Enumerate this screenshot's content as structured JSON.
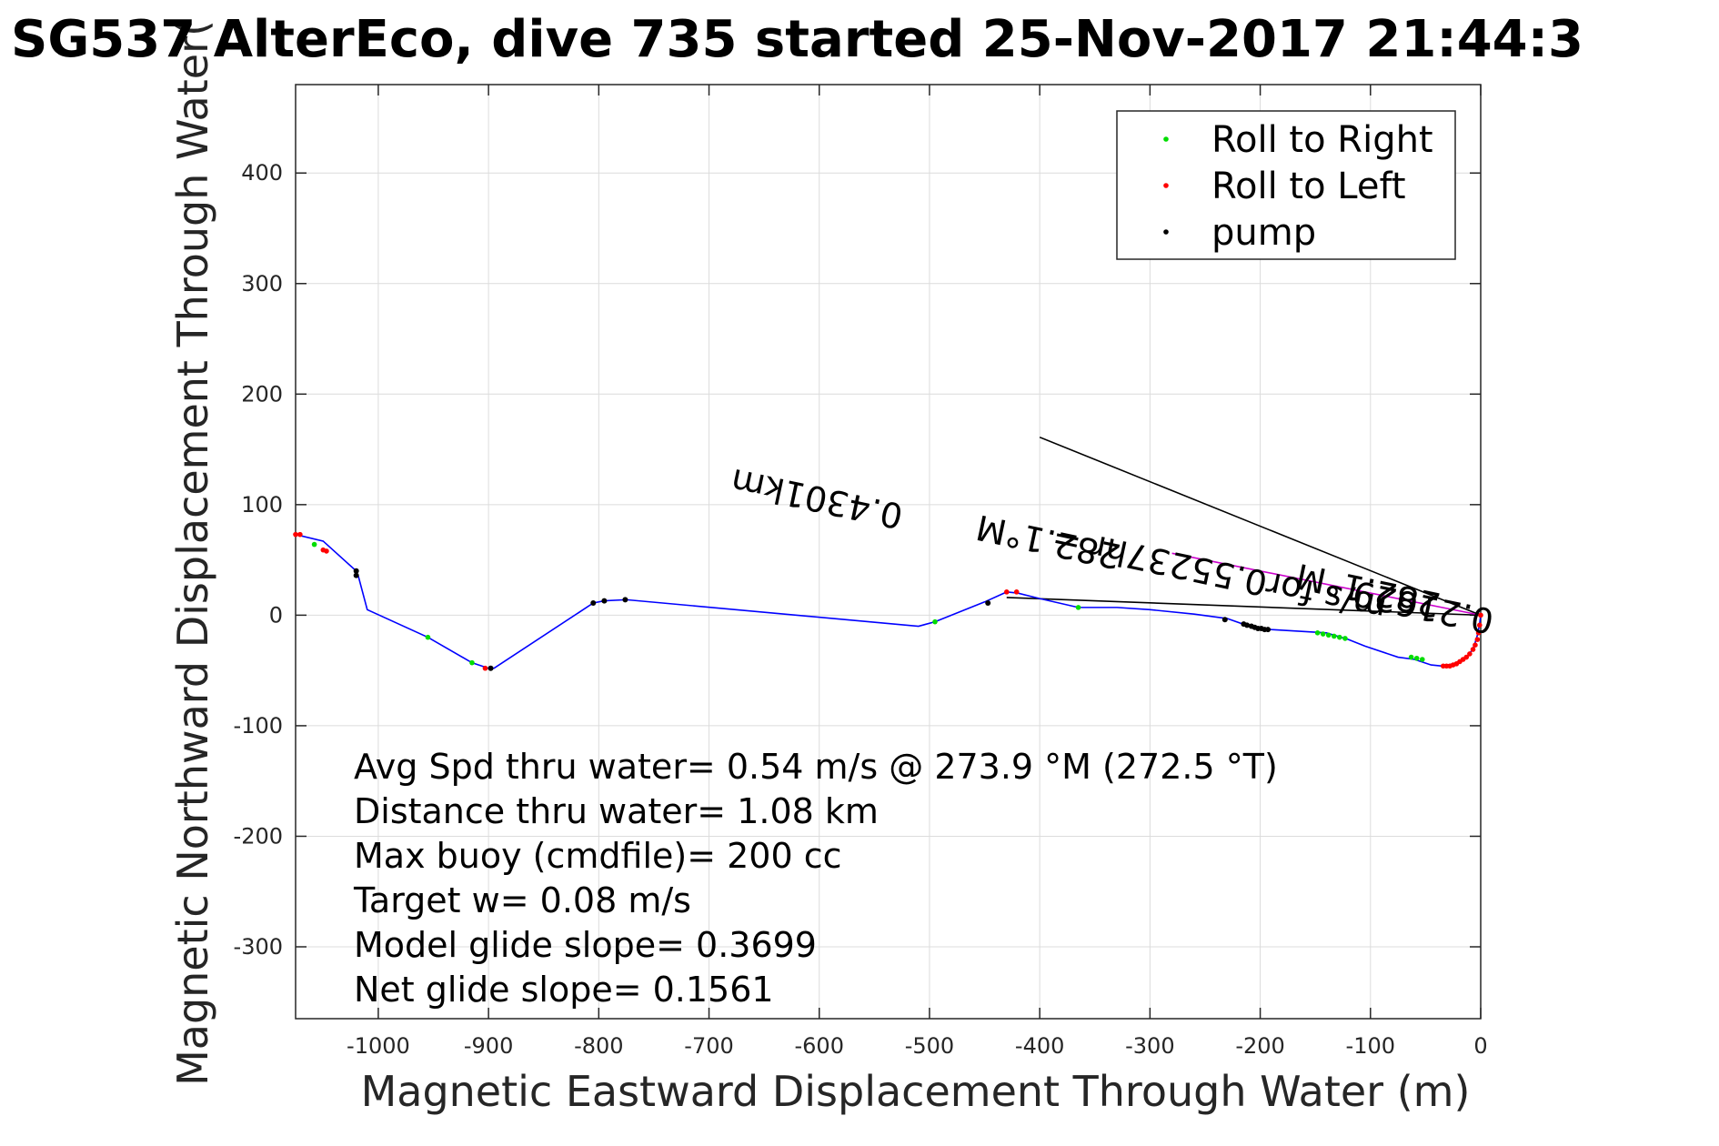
{
  "chart_data": {
    "type": "line",
    "title": "SG537 AlterEco, dive 735 started 25-Nov-2017 21:44:3",
    "xlabel": "Magnetic Eastward Displacement Through Water (m)",
    "ylabel": "Magnetic Northward Displacement Through Water(",
    "xlim": [
      -1075,
      0
    ],
    "ylim": [
      -365,
      480
    ],
    "xticks": [
      -1000,
      -900,
      -800,
      -700,
      -600,
      -500,
      -400,
      -300,
      -200,
      -100,
      0
    ],
    "yticks": [
      -300,
      -200,
      -100,
      0,
      100,
      200,
      300,
      400
    ],
    "grid": true,
    "legend_position": "top-right",
    "legend": [
      {
        "label": "Roll to Right",
        "color": "#00dd00"
      },
      {
        "label": "Roll to Left",
        "color": "#ff0000"
      },
      {
        "label": "pump",
        "color": "#000000"
      }
    ],
    "track_color": "#0000ff",
    "track": {
      "x": [
        -1075,
        -1050,
        -1020,
        -1018,
        -1010,
        -955,
        -915,
        -900,
        -895,
        -805,
        -795,
        -775,
        -510,
        -495,
        -450,
        -430,
        -420,
        -400,
        -365,
        -330,
        -300,
        -260,
        -230,
        -210,
        -190,
        -140,
        -120,
        -105,
        -75,
        -60,
        -45,
        -35,
        -25,
        -15,
        -10,
        -6,
        -3,
        -1,
        0
      ],
      "y": [
        73,
        67,
        40,
        35,
        5,
        -20,
        -43,
        -48,
        -48,
        11,
        13,
        14,
        -10,
        -6,
        12,
        21,
        20,
        15,
        7,
        7,
        5,
        1,
        -3,
        -10,
        -13,
        -16,
        -22,
        -28,
        -38,
        -40,
        -45,
        -46,
        -44,
        -40,
        -35,
        -28,
        -18,
        -8,
        0
      ]
    },
    "roll_right": {
      "x": [
        -1058,
        -955,
        -915,
        -495,
        -365,
        -148,
        -143,
        -138,
        -133,
        -128,
        -123,
        -63,
        -58,
        -53
      ],
      "y": [
        64,
        -20,
        -43,
        -6,
        7,
        -16,
        -17,
        -18,
        -19,
        -20,
        -21,
        -38,
        -39,
        -40
      ]
    },
    "roll_left": {
      "x": [
        -1075,
        -1071,
        -1050,
        -1047,
        -903,
        -430,
        -421,
        -34,
        -31,
        -28,
        -25,
        -22,
        -19,
        -16,
        -13,
        -10,
        -7,
        -5,
        -3,
        -2,
        -1,
        0
      ],
      "y": [
        73,
        73,
        59,
        58,
        -48,
        21,
        21,
        -46,
        -46,
        -46,
        -45,
        -44,
        -42,
        -40,
        -38,
        -35,
        -31,
        -27,
        -22,
        -16,
        -9,
        0
      ]
    },
    "pump": {
      "x": [
        -1020,
        -1020,
        -898,
        -805,
        -795,
        -776,
        -447,
        -232,
        -215,
        -212,
        -208,
        -205,
        -202,
        -199,
        -196,
        -193
      ],
      "y": [
        40,
        36,
        -48,
        11,
        13,
        14,
        11,
        -4,
        -8,
        -9,
        -10,
        -11,
        -12,
        -12,
        -13,
        -13
      ]
    },
    "reference_lines": [
      {
        "x": [
          -400,
          0
        ],
        "y": [
          161,
          0
        ],
        "color": "#000000"
      },
      {
        "x": [
          -430,
          0
        ],
        "y": [
          16,
          0
        ],
        "color": "#000000"
      },
      {
        "x": [
          -280,
          0
        ],
        "y": [
          56,
          0
        ],
        "color": "#cc00cc"
      }
    ],
    "rotated_annotations": [
      {
        "text": "0.4301km",
        "x": -600,
        "y": 116,
        "angle_deg": 192
      },
      {
        "text": "m/s for0.55237hr =",
        "x": -235,
        "y": 48,
        "angle_deg": 192
      },
      {
        "text": "0.21629",
        "x": -50,
        "y": 18,
        "angle_deg": 192
      },
      {
        "text": "282.1°M",
        "x": -390,
        "y": 77,
        "angle_deg": 192
      },
      {
        "text": "282.1°M",
        "x": -100,
        "y": 33,
        "angle_deg": 192
      }
    ],
    "annotations": [
      "Avg Spd thru water=  0.54 m/s @ 273.9 °M (272.5 °T)",
      "Distance thru water=  1.08 km",
      "Max buoy (cmdfile)= 200 cc",
      "Target w= 0.08 m/s",
      "Model glide slope= 0.3699",
      "Net glide slope= 0.1561"
    ]
  }
}
